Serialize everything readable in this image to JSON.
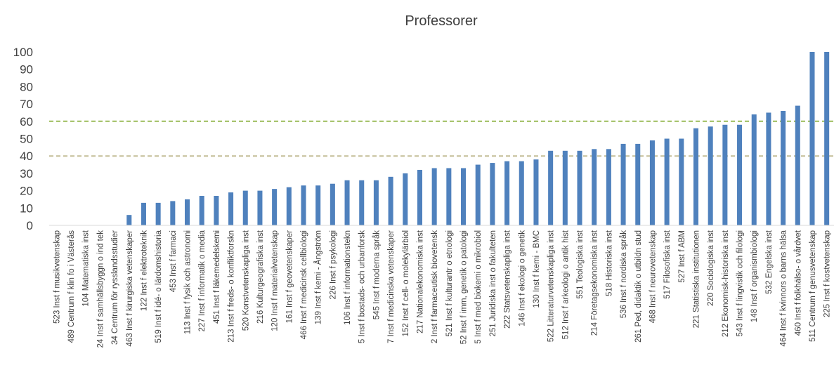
{
  "chart_data": {
    "type": "bar",
    "title": "Professorer",
    "categories": [
      "523 Inst f musikvetenskap",
      "489 Centrum f klin fo i Västerås",
      "104 Matematiska inst",
      "24 Inst f samhällsbyggn o ind tek",
      "34 Centrum för rysslandsstudier",
      "463 Inst f kirurgiska vetenskaper",
      "122 Inst f elektroteknik",
      "519 Inst f idé- o lärdomshistoria",
      "453 Inst f farmaci",
      "113 Inst f fysik och astronomi",
      "227 Inst f informatik o media",
      "451 Inst f läkemedelskemi",
      "213 Inst f freds- o konfliktforskn",
      "520 Konstvetenskapliga inst",
      "216 Kulturgeografiska inst",
      "120 Inst f materialvetenskap",
      "161 Inst f geovetenskaper",
      "466 Inst f medicinsk cellbiologi",
      "139 Inst f kemi - Ångström",
      "226 Inst f psykologi",
      "106 Inst f informationstekn",
      "5 Inst f bostads- och urbanforsk",
      "545 Inst f moderna språk",
      "7 Inst f medicinska vetenskaper",
      "152 Inst f cell- o molekylärbiol",
      "217 Nationalekonomiska inst",
      "2 Inst f farmaceutisk biovetensk",
      "521 Inst f kulturantr o etnologi",
      "52 Inst f imm, genetik o patologi",
      "5 Inst f med biokemi o mikrobiol",
      "251 Juridiska inst o fakulteten",
      "222 Statsvetenskapliga inst",
      "146 Inst f ekologi o genetik",
      "130 Inst f kemi - BMC",
      "522 Litteraturvetenskapliga inst",
      "512 Inst f arkeologi o antik hist",
      "551 Teologiska inst",
      "214 Företagsekonomiska inst",
      "518 Historiska inst",
      "536 Inst f nordiska språk",
      "261 Ped, didaktik o utbildn stud",
      "468 Inst f neurovetenskap",
      "517 Filosofiska inst",
      "527 Inst f ABM",
      "221 Statistiska institutionen",
      "220 Sociologiska inst",
      "212 Ekonomisk-historiska inst",
      "543 Inst f lingvistik och filologi",
      "148 Inst f organismbiologi",
      "532 Engelska inst",
      "464 Inst f kvinnors o barns hälsa",
      "460 Inst f folkhälso- o vårdvet",
      "511 Centrum f genusvetenskap",
      "225 Inst f kostvetenskap"
    ],
    "values": [
      0,
      0,
      0,
      0,
      0,
      6,
      13,
      13,
      14,
      15,
      17,
      17,
      19,
      20,
      20,
      21,
      22,
      23,
      23,
      24,
      26,
      26,
      26,
      28,
      30,
      32,
      33,
      33,
      33,
      35,
      36,
      37,
      37,
      38,
      43,
      43,
      43,
      44,
      44,
      47,
      47,
      49,
      50,
      50,
      56,
      57,
      58,
      58,
      64,
      65,
      66,
      69,
      100,
      100
    ],
    "color": "#4f81bd",
    "ylim": [
      0,
      100
    ],
    "yticks": [
      0,
      10,
      20,
      30,
      40,
      50,
      60,
      70,
      80,
      90,
      100
    ],
    "reference_lines": [
      {
        "value": 40,
        "color": "#c4bd97"
      },
      {
        "value": 60,
        "color": "#9bbb59"
      }
    ]
  }
}
